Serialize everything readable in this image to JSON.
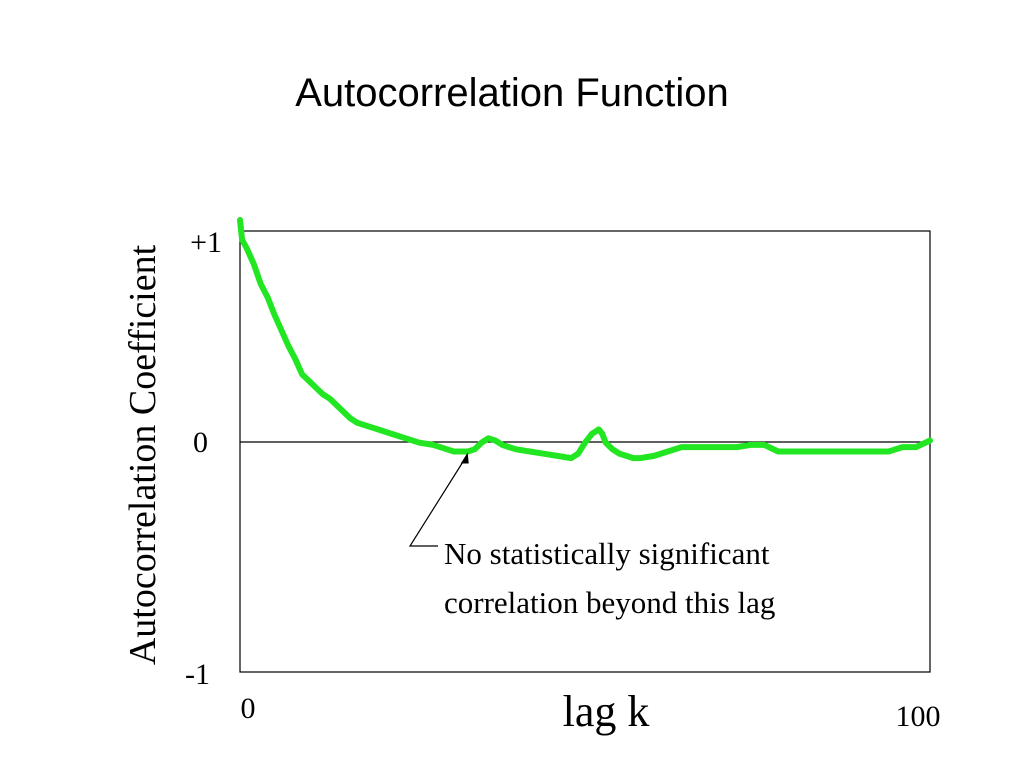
{
  "chart_data": {
    "type": "line",
    "title": "Autocorrelation Function",
    "xlabel": "lag k",
    "ylabel": "Autocorrelation Coefficient",
    "xlim": [
      0,
      100
    ],
    "ylim": [
      -1,
      1
    ],
    "x_tick_labels": {
      "min": "0",
      "max": "100"
    },
    "y_tick_labels": {
      "top": "+1",
      "middle": "0",
      "bottom": "-1"
    },
    "zero_line": true,
    "grid": false,
    "annotation": {
      "lines": [
        "No statistically significant",
        "correlation beyond this lag"
      ],
      "points_to": {
        "x": 33,
        "y": 0
      }
    },
    "series": [
      {
        "color": "#22e622",
        "x": [
          0,
          0.3,
          1,
          2,
          3,
          4,
          5,
          6,
          7,
          8,
          9,
          10,
          11,
          12,
          13,
          14,
          15,
          16,
          17,
          18,
          19,
          20,
          22,
          24,
          26,
          28,
          30,
          31,
          32,
          33,
          34,
          35,
          36,
          37,
          38,
          39,
          40,
          42,
          44,
          46,
          48,
          49,
          50,
          51,
          52,
          52.5,
          53,
          54,
          55,
          56,
          57,
          58,
          60,
          62,
          64,
          66,
          68,
          70,
          72,
          74,
          76,
          78,
          80,
          82,
          84,
          86,
          88,
          90,
          92,
          94,
          96,
          98,
          100
        ],
        "y": [
          1.05,
          0.96,
          0.92,
          0.85,
          0.76,
          0.7,
          0.62,
          0.55,
          0.48,
          0.42,
          0.35,
          0.32,
          0.29,
          0.26,
          0.24,
          0.21,
          0.18,
          0.15,
          0.13,
          0.12,
          0.11,
          0.1,
          0.08,
          0.06,
          0.04,
          0.03,
          0.01,
          0.0,
          0.0,
          0.0,
          0.01,
          0.04,
          0.06,
          0.05,
          0.03,
          0.02,
          0.01,
          0.0,
          -0.01,
          -0.02,
          -0.03,
          -0.01,
          0.04,
          0.08,
          0.1,
          0.08,
          0.04,
          0.01,
          -0.01,
          -0.02,
          -0.03,
          -0.03,
          -0.02,
          0.0,
          0.02,
          0.02,
          0.02,
          0.02,
          0.02,
          0.03,
          0.03,
          0.0,
          0.0,
          0.0,
          0.0,
          0.0,
          0.0,
          0.0,
          0.0,
          0.0,
          0.02,
          0.02,
          0.05
        ]
      }
    ]
  }
}
